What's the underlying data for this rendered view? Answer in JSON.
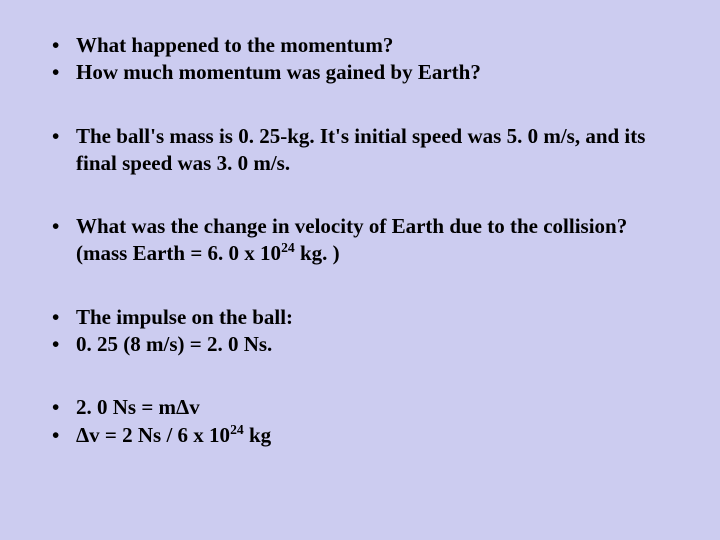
{
  "background_color": "#ccccf0",
  "text_color": "#000000",
  "font_family": "Times New Roman",
  "font_size_pt": 21,
  "font_weight": "bold",
  "bullets": {
    "g1": {
      "b1": "What happened to the momentum?",
      "b2": "How much momentum was gained by Earth?"
    },
    "g2": {
      "b1": "The ball's mass is 0. 25-kg. It's initial speed was 5. 0 m/s, and its final speed was 3. 0 m/s."
    },
    "g3": {
      "b1_pre": "What was the change in velocity of Earth due to the collision? (mass Earth = 6. 0 x 10",
      "b1_sup": "24",
      "b1_post": " kg. )"
    },
    "g4": {
      "b1": "The impulse on the ball:",
      "b2": "0. 25 (8 m/s) =  2. 0 Ns."
    },
    "g5": {
      "b1": " 2. 0 Ns = mΔv",
      "b2_pre": " Δv  = 2 Ns / 6 x 10",
      "b2_sup": "24",
      "b2_post": " kg"
    }
  }
}
